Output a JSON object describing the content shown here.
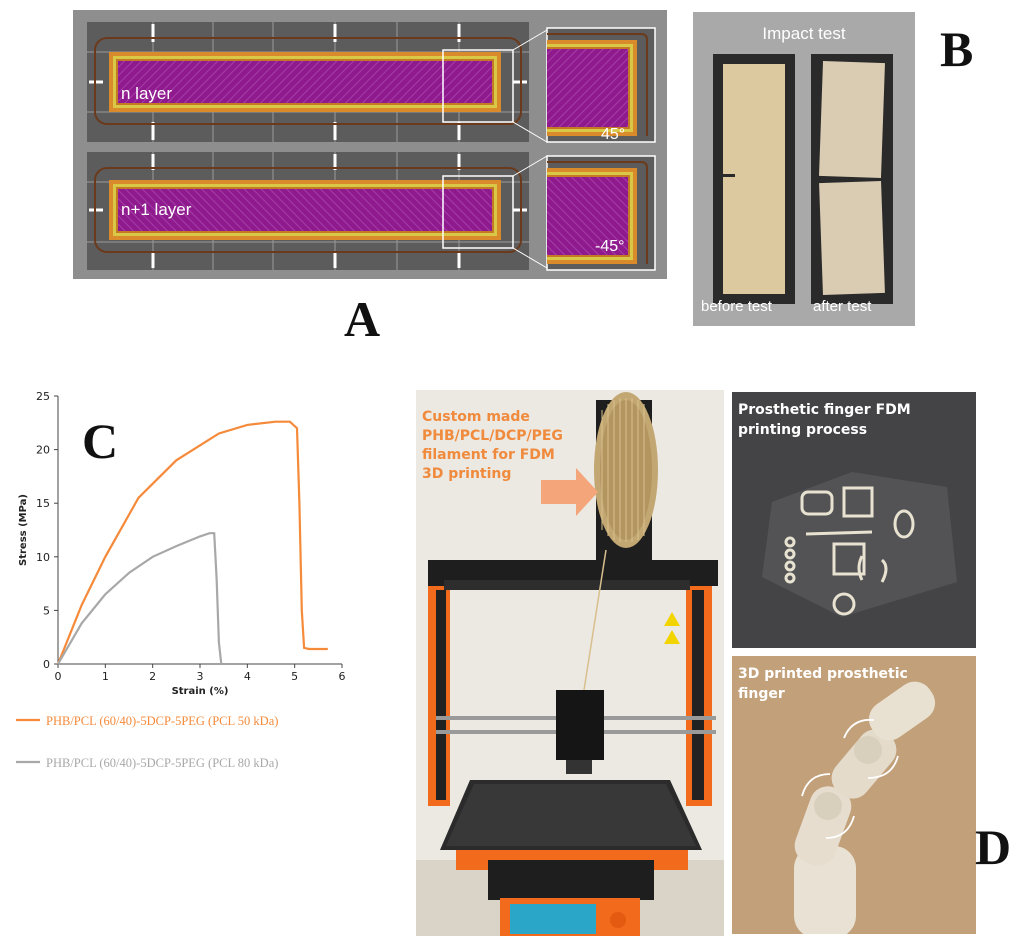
{
  "panels": {
    "a": "A",
    "b": "B",
    "c": "C",
    "d": "D"
  },
  "panel_a": {
    "layer1_label": "n layer",
    "layer2_label": "n+1 layer",
    "angle1": "45°",
    "angle2": "-45°",
    "colors": {
      "infill": "#8e1a8e",
      "perimeter_orange": "#d98a2a",
      "perimeter_yellow": "#d8c845",
      "travel": "#6b3a1d",
      "background": "#5a5a5a"
    }
  },
  "panel_b": {
    "title": "Impact test",
    "before": "before test",
    "after": "after test"
  },
  "chart_data": {
    "type": "line",
    "xlabel": "Strain (%)",
    "ylabel": "Stress (MPa)",
    "xlim": [
      0,
      6
    ],
    "ylim": [
      0,
      25
    ],
    "xticks": [
      0,
      1,
      2,
      3,
      4,
      5,
      6
    ],
    "yticks": [
      0,
      5,
      10,
      15,
      20,
      25
    ],
    "grid": false,
    "legend": "bottom",
    "series": [
      {
        "name": "PHB/PCL (60/40)-5DCP-5PEG (PCL 50 kDa)",
        "color": "#f58a3a",
        "x": [
          0,
          0.5,
          1.0,
          1.7,
          2.5,
          3.4,
          4.0,
          4.6,
          4.9,
          5.05,
          5.1,
          5.15,
          5.2,
          5.3,
          5.7
        ],
        "y": [
          0,
          5.5,
          10,
          15.5,
          19,
          21.5,
          22.3,
          22.6,
          22.6,
          22.0,
          15,
          5,
          1.5,
          1.4,
          1.4
        ]
      },
      {
        "name": "PHB/PCL (60/40)-5DCP-5PEG (PCL 80 kDa)",
        "color": "#a8a8a8",
        "x": [
          0,
          0.5,
          1.0,
          1.5,
          2.0,
          2.5,
          3.0,
          3.2,
          3.3,
          3.35,
          3.4,
          3.45
        ],
        "y": [
          0,
          3.8,
          6.5,
          8.5,
          10,
          11,
          11.9,
          12.2,
          12.2,
          8,
          2,
          0
        ]
      }
    ]
  },
  "panel_d": {
    "caption_main_lines": [
      "Custom made",
      "PHB/PCL/DCP/PEG",
      "filament for FDM",
      "3D printing"
    ],
    "caption_process_lines": [
      "Prosthetic finger FDM",
      "printing process"
    ],
    "caption_finger_lines": [
      "3D printed prosthetic",
      "finger"
    ]
  }
}
